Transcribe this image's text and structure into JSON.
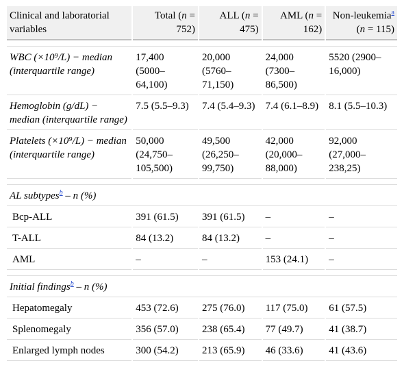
{
  "header": {
    "col1": "Clinical and laboratorial variables",
    "col2": {
      "pre": "Total (",
      "n": "n",
      "post": " = 752)"
    },
    "col3": {
      "pre": "ALL (",
      "n": "n",
      "post": " = 475)"
    },
    "col4": {
      "pre": "AML (",
      "n": "n",
      "post": " = 162)"
    },
    "col5": {
      "pre": "Non-leukemia",
      "fn": "a",
      "mid": " (",
      "n": "n",
      "post": " = 115)"
    }
  },
  "rows": {
    "wbc": {
      "label": "WBC (×10⁹/L) − median (interquartile range)",
      "total": "17,400 (5000–64,100)",
      "all": "20,000 (5760–71,150)",
      "aml": "24,000 (7300–86,500)",
      "non": "5520 (2900–16,000)"
    },
    "hgb": {
      "label": "Hemoglobin (g/dL) − median (interquartile range)",
      "total": "7.5 (5.5–9.3)",
      "all": "7.4 (5.4–9.3)",
      "aml": "7.4 (6.1–8.9)",
      "non": "8.1 (5.5–10.3)"
    },
    "plt": {
      "label": "Platelets (×10⁹/L) − median (interquartile range)",
      "total": "50,000 (24,750–105,500)",
      "all": "49,500 (26,250–99,750)",
      "aml": "42,000 (20,000–88,000)",
      "non": "92,000 (27,000–238,25)"
    },
    "al_sub": {
      "label": "AL subtypes",
      "fn": "b",
      "suffix": " – n (%)"
    },
    "bcp": {
      "label": "Bcp-ALL",
      "total": "391 (61.5)",
      "all": "391 (61.5)",
      "aml": "–",
      "non": "–"
    },
    "tall": {
      "label": "T-ALL",
      "total": "84 (13.2)",
      "all": "84 (13.2)",
      "aml": "–",
      "non": "–"
    },
    "amlrow": {
      "label": "AML",
      "total": "–",
      "all": "–",
      "aml": "153 (24.1)",
      "non": "–"
    },
    "init": {
      "label": "Initial findings",
      "fn": "b",
      "suffix": " – n (%)"
    },
    "hep": {
      "label": "Hepatomegaly",
      "total": "453 (72.6)",
      "all": "275 (76.0)",
      "aml": "117 (75.0)",
      "non": "61 (57.5)"
    },
    "spl": {
      "label": "Splenomegaly",
      "total": "356 (57.0)",
      "all": "238 (65.4)",
      "aml": "77 (49.7)",
      "non": "41 (38.7)"
    },
    "lym": {
      "label": "Enlarged lymph nodes",
      "total": "300 (54.2)",
      "all": "213 (65.9)",
      "aml": "46 (33.6)",
      "non": "41 (43.6)"
    }
  }
}
